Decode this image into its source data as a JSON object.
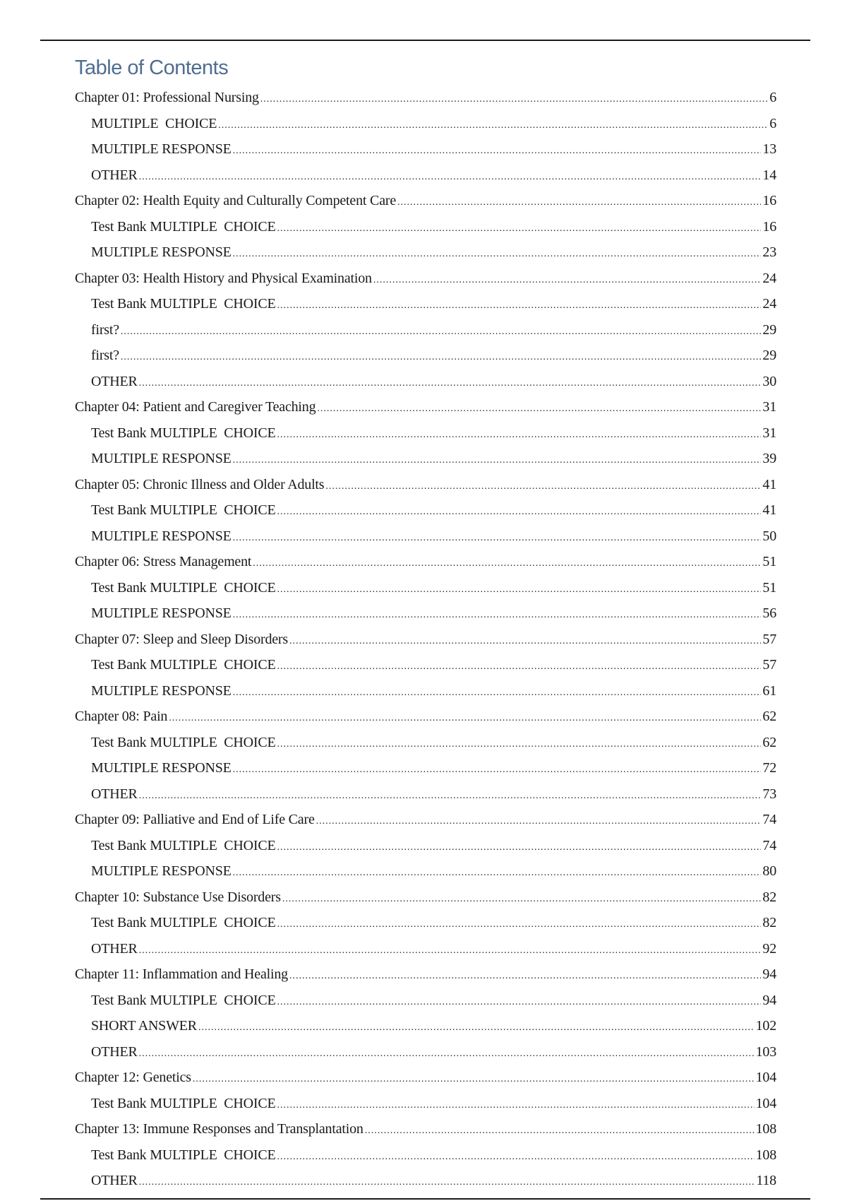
{
  "title": "Table of Contents",
  "entries": [
    {
      "level": 1,
      "label": "Chapter 01: Professional Nursing",
      "page": "6"
    },
    {
      "level": 2,
      "label": "MULTIPLE  CHOICE",
      "page": "6"
    },
    {
      "level": 2,
      "label": "MULTIPLE RESPONSE",
      "page": "13"
    },
    {
      "level": 2,
      "label": "OTHER",
      "page": "14"
    },
    {
      "level": 1,
      "label": "Chapter 02: Health Equity and Culturally Competent Care",
      "page": "16"
    },
    {
      "level": 2,
      "label": "Test Bank MULTIPLE  CHOICE",
      "page": "16"
    },
    {
      "level": 2,
      "label": "MULTIPLE RESPONSE",
      "page": "23"
    },
    {
      "level": 1,
      "label": "Chapter 03: Health History and Physical Examination",
      "page": "24"
    },
    {
      "level": 2,
      "label": "Test Bank MULTIPLE  CHOICE",
      "page": "24"
    },
    {
      "level": 2,
      "label": "first?",
      "page": "29"
    },
    {
      "level": 2,
      "label": "first?",
      "page": "29"
    },
    {
      "level": 2,
      "label": "OTHER",
      "page": "30"
    },
    {
      "level": 1,
      "label": "Chapter 04: Patient and Caregiver Teaching",
      "page": "31"
    },
    {
      "level": 2,
      "label": "Test Bank MULTIPLE  CHOICE",
      "page": "31"
    },
    {
      "level": 2,
      "label": "MULTIPLE RESPONSE",
      "page": "39"
    },
    {
      "level": 1,
      "label": "Chapter 05: Chronic Illness and Older Adults",
      "page": "41"
    },
    {
      "level": 2,
      "label": "Test Bank MULTIPLE  CHOICE",
      "page": "41"
    },
    {
      "level": 2,
      "label": "MULTIPLE RESPONSE",
      "page": "50"
    },
    {
      "level": 1,
      "label": "Chapter 06: Stress Management",
      "page": "51"
    },
    {
      "level": 2,
      "label": "Test Bank MULTIPLE  CHOICE",
      "page": "51"
    },
    {
      "level": 2,
      "label": "MULTIPLE RESPONSE",
      "page": "56"
    },
    {
      "level": 1,
      "label": "Chapter 07: Sleep and Sleep Disorders",
      "page": "57"
    },
    {
      "level": 2,
      "label": "Test Bank MULTIPLE  CHOICE",
      "page": "57"
    },
    {
      "level": 2,
      "label": "MULTIPLE RESPONSE",
      "page": "61"
    },
    {
      "level": 1,
      "label": "Chapter 08: Pain",
      "page": "62"
    },
    {
      "level": 2,
      "label": "Test Bank MULTIPLE  CHOICE",
      "page": "62"
    },
    {
      "level": 2,
      "label": "MULTIPLE RESPONSE",
      "page": "72"
    },
    {
      "level": 2,
      "label": "OTHER",
      "page": "73"
    },
    {
      "level": 1,
      "label": "Chapter 09: Palliative and End of Life Care",
      "page": "74"
    },
    {
      "level": 2,
      "label": "Test Bank MULTIPLE  CHOICE",
      "page": "74"
    },
    {
      "level": 2,
      "label": "MULTIPLE RESPONSE",
      "page": "80"
    },
    {
      "level": 1,
      "label": "Chapter 10: Substance Use Disorders",
      "page": "82"
    },
    {
      "level": 2,
      "label": "Test Bank MULTIPLE  CHOICE",
      "page": "82"
    },
    {
      "level": 2,
      "label": "OTHER",
      "page": "92"
    },
    {
      "level": 1,
      "label": "Chapter 11: Inflammation and Healing",
      "page": "94"
    },
    {
      "level": 2,
      "label": "Test Bank MULTIPLE  CHOICE",
      "page": "94"
    },
    {
      "level": 2,
      "label": "SHORT ANSWER",
      "page": "102"
    },
    {
      "level": 2,
      "label": "OTHER",
      "page": "103"
    },
    {
      "level": 1,
      "label": "Chapter 12: Genetics",
      "page": "104"
    },
    {
      "level": 2,
      "label": "Test Bank MULTIPLE  CHOICE",
      "page": "104"
    },
    {
      "level": 1,
      "label": "Chapter 13: Immune Responses and Transplantation",
      "page": "108"
    },
    {
      "level": 2,
      "label": "Test Bank MULTIPLE  CHOICE",
      "page": "108"
    },
    {
      "level": 2,
      "label": "OTHER",
      "page": "118"
    }
  ]
}
